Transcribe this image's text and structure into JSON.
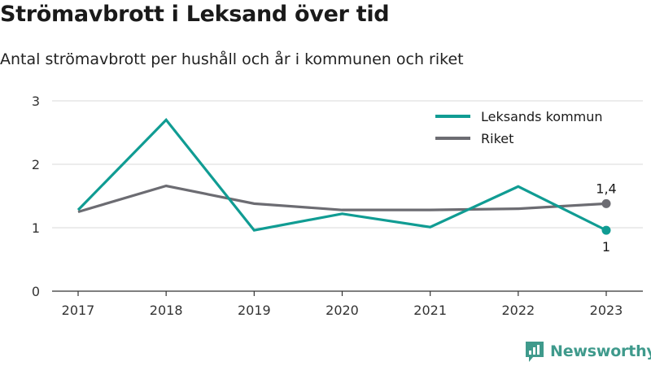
{
  "title": "Strömavbrott i Leksand över tid",
  "subtitle": "Antal strömavbrott per hushåll och år i kommunen och riket",
  "brand": {
    "name": "Newsworthy",
    "icon": "newsworthy-logo-icon",
    "color": "#3f9a8c"
  },
  "chart_data": {
    "type": "line",
    "title": "Strömavbrott i Leksand över tid",
    "subtitle": "Antal strömavbrott per hushåll och år i kommunen och riket",
    "xlabel": "",
    "ylabel": "",
    "x": [
      "2017",
      "2018",
      "2019",
      "2020",
      "2021",
      "2022",
      "2023"
    ],
    "ylim": [
      0,
      3
    ],
    "yticks": [
      "0",
      "1",
      "2",
      "3"
    ],
    "grid": true,
    "legend_position": "top-right",
    "series": [
      {
        "name": "Leksands kommun",
        "color": "#109c93",
        "values": [
          1.28,
          2.7,
          0.96,
          1.22,
          1.01,
          1.65,
          0.96
        ],
        "end_label": "1"
      },
      {
        "name": "Riket",
        "color": "#6c6c72",
        "values": [
          1.25,
          1.66,
          1.38,
          1.28,
          1.28,
          1.3,
          1.38
        ],
        "end_label": "1,4"
      }
    ]
  }
}
